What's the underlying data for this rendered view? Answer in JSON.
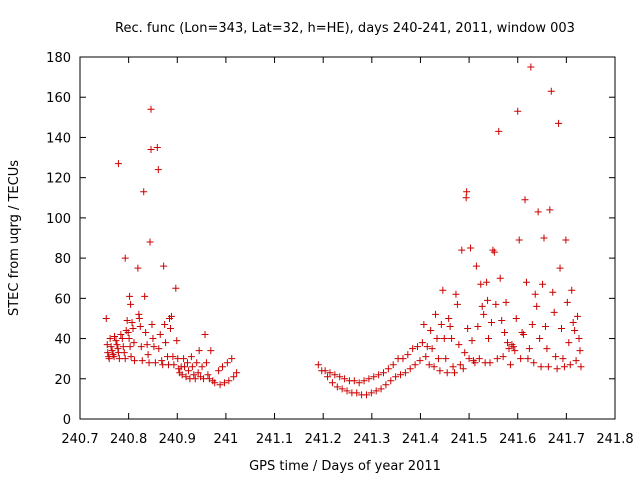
{
  "chart_data": {
    "type": "scatter",
    "title": "Rec. func (Lon=343, Lat=32, h=HE), days 240-241, 2011, window 003",
    "xlabel": "GPS time / Days of year 2011",
    "ylabel": "STEC from uqrg / TECUs",
    "xlim": [
      240.7,
      241.8
    ],
    "ylim": [
      0,
      180
    ],
    "xticks": [
      240.7,
      240.8,
      240.9,
      241.0,
      241.1,
      241.2,
      241.3,
      241.4,
      241.5,
      241.6,
      241.7,
      241.8
    ],
    "xtick_labels": [
      "240.7",
      "240.8",
      "240.9",
      "241",
      "241.1",
      "241.2",
      "241.3",
      "241.4",
      "241.5",
      "241.6",
      "241.7",
      "241.8"
    ],
    "yticks": [
      0,
      20,
      40,
      60,
      80,
      100,
      120,
      140,
      160,
      180
    ],
    "ytick_labels": [
      "0",
      "20",
      "40",
      "60",
      "80",
      "100",
      "120",
      "140",
      "160",
      "180"
    ],
    "grid": false,
    "legend": "none",
    "marker": "plus",
    "color": "#cc0000",
    "points": [
      [
        240.754,
        50
      ],
      [
        240.756,
        37
      ],
      [
        240.757,
        33
      ],
      [
        240.759,
        31
      ],
      [
        240.76,
        30
      ],
      [
        240.762,
        40
      ],
      [
        240.764,
        36
      ],
      [
        240.766,
        34
      ],
      [
        240.768,
        32
      ],
      [
        240.77,
        31
      ],
      [
        240.771,
        41
      ],
      [
        240.774,
        39
      ],
      [
        240.776,
        37
      ],
      [
        240.778,
        35
      ],
      [
        240.779,
        33
      ],
      [
        240.781,
        30
      ],
      [
        240.779,
        127
      ],
      [
        240.784,
        42
      ],
      [
        240.787,
        40
      ],
      [
        240.789,
        36
      ],
      [
        240.791,
        33
      ],
      [
        240.793,
        30
      ],
      [
        240.793,
        80
      ],
      [
        240.795,
        44
      ],
      [
        240.797,
        49
      ],
      [
        240.799,
        43
      ],
      [
        240.801,
        40
      ],
      [
        240.803,
        36
      ],
      [
        240.805,
        31
      ],
      [
        240.802,
        61
      ],
      [
        240.804,
        57
      ],
      [
        240.807,
        48
      ],
      [
        240.809,
        45
      ],
      [
        240.811,
        38
      ],
      [
        240.812,
        29
      ],
      [
        240.819,
        75
      ],
      [
        240.821,
        52
      ],
      [
        240.822,
        50
      ],
      [
        240.824,
        46
      ],
      [
        240.826,
        36
      ],
      [
        240.828,
        29
      ],
      [
        240.831,
        113
      ],
      [
        240.833,
        61
      ],
      [
        240.835,
        43
      ],
      [
        240.838,
        37
      ],
      [
        240.84,
        32
      ],
      [
        240.842,
        28
      ],
      [
        240.846,
        154
      ],
      [
        240.844,
        88
      ],
      [
        240.846,
        134
      ],
      [
        240.848,
        47
      ],
      [
        240.85,
        40
      ],
      [
        240.852,
        36
      ],
      [
        240.855,
        28
      ],
      [
        240.859,
        135
      ],
      [
        240.861,
        124
      ],
      [
        240.862,
        35
      ],
      [
        240.865,
        42
      ],
      [
        240.868,
        29
      ],
      [
        240.87,
        27
      ],
      [
        240.872,
        76
      ],
      [
        240.874,
        47
      ],
      [
        240.876,
        38
      ],
      [
        240.88,
        31
      ],
      [
        240.882,
        27
      ],
      [
        240.884,
        50
      ],
      [
        240.886,
        45
      ],
      [
        240.888,
        51
      ],
      [
        240.891,
        31
      ],
      [
        240.893,
        27
      ],
      [
        240.897,
        65
      ],
      [
        240.899,
        39
      ],
      [
        240.901,
        30
      ],
      [
        240.903,
        25
      ],
      [
        240.905,
        23
      ],
      [
        240.908,
        26
      ],
      [
        240.91,
        22
      ],
      [
        240.913,
        30
      ],
      [
        240.915,
        26
      ],
      [
        240.918,
        21
      ],
      [
        240.921,
        28
      ],
      [
        240.923,
        24
      ],
      [
        240.926,
        20
      ],
      [
        240.929,
        31
      ],
      [
        240.931,
        26
      ],
      [
        240.934,
        22
      ],
      [
        240.937,
        20
      ],
      [
        240.94,
        28
      ],
      [
        240.943,
        23
      ],
      [
        240.945,
        34
      ],
      [
        240.948,
        21
      ],
      [
        240.951,
        26
      ],
      [
        240.954,
        20
      ],
      [
        240.957,
        42
      ],
      [
        240.96,
        28
      ],
      [
        240.963,
        22
      ],
      [
        240.966,
        20
      ],
      [
        240.969,
        34
      ],
      [
        240.973,
        19
      ],
      [
        240.977,
        18
      ],
      [
        240.985,
        24
      ],
      [
        240.988,
        17
      ],
      [
        240.993,
        26
      ],
      [
        240.997,
        18
      ],
      [
        241.003,
        28
      ],
      [
        241.006,
        19
      ],
      [
        241.012,
        30
      ],
      [
        241.016,
        21
      ],
      [
        241.022,
        23
      ],
      [
        241.19,
        27
      ],
      [
        241.197,
        24
      ],
      [
        241.204,
        24
      ],
      [
        241.209,
        21
      ],
      [
        241.214,
        23
      ],
      [
        241.219,
        18
      ],
      [
        241.224,
        22
      ],
      [
        241.229,
        16
      ],
      [
        241.234,
        21
      ],
      [
        241.239,
        15
      ],
      [
        241.244,
        20
      ],
      [
        241.249,
        14
      ],
      [
        241.254,
        19
      ],
      [
        241.259,
        13
      ],
      [
        241.264,
        19
      ],
      [
        241.269,
        13
      ],
      [
        241.274,
        18
      ],
      [
        241.279,
        12
      ],
      [
        241.284,
        19
      ],
      [
        241.289,
        12
      ],
      [
        241.294,
        20
      ],
      [
        241.299,
        13
      ],
      [
        241.304,
        21
      ],
      [
        241.309,
        14
      ],
      [
        241.314,
        22
      ],
      [
        241.319,
        15
      ],
      [
        241.324,
        23
      ],
      [
        241.329,
        17
      ],
      [
        241.334,
        25
      ],
      [
        241.339,
        19
      ],
      [
        241.344,
        27
      ],
      [
        241.349,
        21
      ],
      [
        241.354,
        30
      ],
      [
        241.359,
        22
      ],
      [
        241.364,
        30
      ],
      [
        241.369,
        23
      ],
      [
        241.374,
        32
      ],
      [
        241.379,
        25
      ],
      [
        241.384,
        35
      ],
      [
        241.389,
        27
      ],
      [
        241.394,
        36
      ],
      [
        241.399,
        29
      ],
      [
        241.404,
        38
      ],
      [
        241.407,
        47
      ],
      [
        241.411,
        31
      ],
      [
        241.414,
        36
      ],
      [
        241.418,
        27
      ],
      [
        241.421,
        44
      ],
      [
        241.424,
        35
      ],
      [
        241.428,
        26
      ],
      [
        241.431,
        52
      ],
      [
        241.434,
        40
      ],
      [
        241.437,
        30
      ],
      [
        241.44,
        24
      ],
      [
        241.443,
        47
      ],
      [
        241.446,
        64
      ],
      [
        241.449,
        40
      ],
      [
        241.452,
        30
      ],
      [
        241.455,
        23
      ],
      [
        241.458,
        50
      ],
      [
        241.461,
        46
      ],
      [
        241.464,
        40
      ],
      [
        241.467,
        26
      ],
      [
        241.47,
        23
      ],
      [
        241.473,
        62
      ],
      [
        241.476,
        57
      ],
      [
        241.479,
        37
      ],
      [
        241.482,
        27
      ],
      [
        241.485,
        84
      ],
      [
        241.488,
        25
      ],
      [
        241.491,
        33
      ],
      [
        241.494,
        110
      ],
      [
        241.495,
        113
      ],
      [
        241.497,
        45
      ],
      [
        241.5,
        30
      ],
      [
        241.503,
        85
      ],
      [
        241.506,
        39
      ],
      [
        241.509,
        29
      ],
      [
        241.512,
        28
      ],
      [
        241.515,
        76
      ],
      [
        241.518,
        46
      ],
      [
        241.521,
        30
      ],
      [
        241.524,
        67
      ],
      [
        241.527,
        56
      ],
      [
        241.53,
        52
      ],
      [
        241.533,
        28
      ],
      [
        241.536,
        68
      ],
      [
        241.538,
        59
      ],
      [
        241.54,
        40
      ],
      [
        241.543,
        28
      ],
      [
        241.546,
        48
      ],
      [
        241.549,
        84
      ],
      [
        241.552,
        83
      ],
      [
        241.555,
        57
      ],
      [
        241.558,
        30
      ],
      [
        241.561,
        143
      ],
      [
        241.564,
        70
      ],
      [
        241.567,
        49
      ],
      [
        241.57,
        31
      ],
      [
        241.573,
        43
      ],
      [
        241.576,
        58
      ],
      [
        241.579,
        38
      ],
      [
        241.582,
        35
      ],
      [
        241.585,
        27
      ],
      [
        241.588,
        37
      ],
      [
        241.591,
        36
      ],
      [
        241.594,
        34
      ],
      [
        241.597,
        50
      ],
      [
        241.6,
        153
      ],
      [
        241.603,
        89
      ],
      [
        241.606,
        30
      ],
      [
        241.609,
        43
      ],
      [
        241.612,
        42
      ],
      [
        241.615,
        109
      ],
      [
        241.618,
        68
      ],
      [
        241.621,
        30
      ],
      [
        241.624,
        35
      ],
      [
        241.627,
        175
      ],
      [
        241.63,
        47
      ],
      [
        241.633,
        28
      ],
      [
        241.636,
        62
      ],
      [
        241.639,
        56
      ],
      [
        241.642,
        103
      ],
      [
        241.645,
        40
      ],
      [
        241.648,
        26
      ],
      [
        241.651,
        67
      ],
      [
        241.654,
        90
      ],
      [
        241.657,
        46
      ],
      [
        241.66,
        35
      ],
      [
        241.663,
        26
      ],
      [
        241.666,
        104
      ],
      [
        241.669,
        163
      ],
      [
        241.672,
        63
      ],
      [
        241.675,
        53
      ],
      [
        241.678,
        31
      ],
      [
        241.681,
        25
      ],
      [
        241.684,
        147
      ],
      [
        241.687,
        75
      ],
      [
        241.69,
        45
      ],
      [
        241.693,
        30
      ],
      [
        241.696,
        26
      ],
      [
        241.699,
        89
      ],
      [
        241.702,
        58
      ],
      [
        241.705,
        38
      ],
      [
        241.708,
        27
      ],
      [
        241.711,
        64
      ],
      [
        241.714,
        48
      ],
      [
        241.717,
        44
      ],
      [
        241.72,
        29
      ],
      [
        241.723,
        51
      ],
      [
        241.726,
        40
      ],
      [
        241.728,
        34
      ],
      [
        241.73,
        26
      ]
    ]
  }
}
